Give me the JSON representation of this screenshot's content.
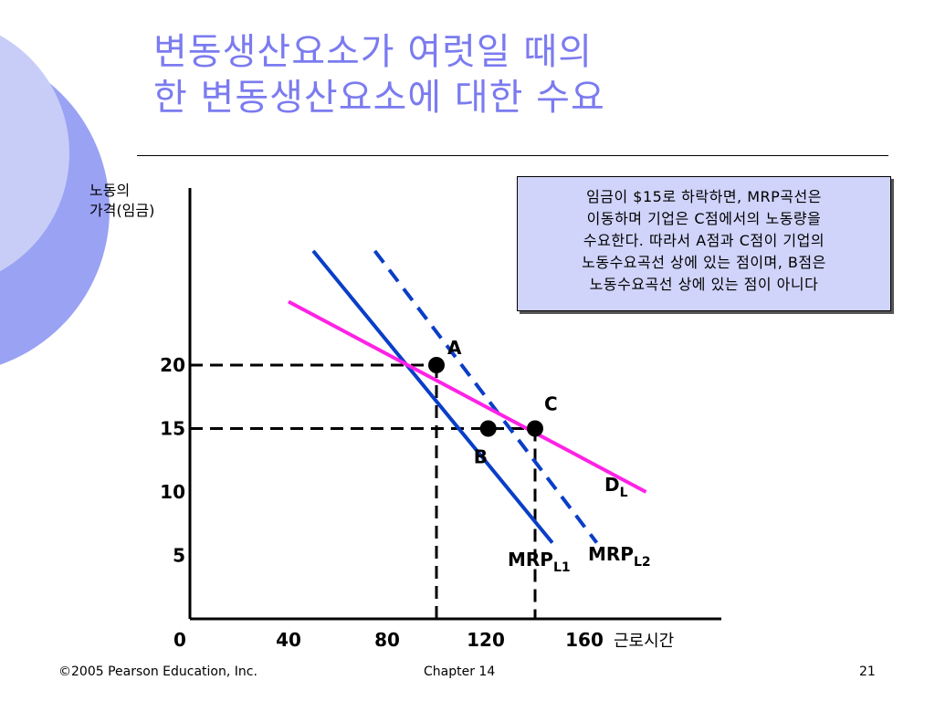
{
  "title": {
    "line1": "변동생산요소가 여럿일 때의",
    "line2": "한 변동생산요소에 대한 수요"
  },
  "note": {
    "lines": [
      "임금이 $15로 하락하면,  MRP곡선은",
      "이동하며 기업은 C점에서의 노동량을",
      "수요한다. 따라서 A점과 C점이 기업의",
      "노동수요곡선 상에 있는 점이며, B점은",
      "노동수요곡선 상에 있는 점이 아니다"
    ]
  },
  "footer": {
    "copyright": "©2005 Pearson Education, Inc.",
    "chapter": "Chapter 14",
    "page": "21"
  },
  "colors": {
    "title": "#7b7bf0",
    "mrp": "#0a3ec8",
    "demand": "#ff22e6",
    "deco_circle": "#c8cdf8",
    "deco_ring": "#9aa2f4",
    "note_bg": "#d0d4fa"
  },
  "chart_data": {
    "type": "line",
    "xlabel": "근로시간",
    "ylabel_line1": "노동의",
    "ylabel_line2": "가격(임금)",
    "x_ticks": [
      0,
      40,
      80,
      120,
      160
    ],
    "y_ticks": [
      5,
      10,
      15,
      20
    ],
    "series": [
      {
        "name": "MRPL1",
        "main": "MRP",
        "sub": "L1",
        "style": "solid",
        "points": [
          [
            50,
            29
          ],
          [
            147,
            6
          ]
        ]
      },
      {
        "name": "MRPL2",
        "main": "MRP",
        "sub": "L2",
        "style": "dashed",
        "points": [
          [
            75,
            29
          ],
          [
            165,
            6
          ]
        ]
      },
      {
        "name": "DL",
        "main": "D",
        "sub": "L",
        "style": "solid",
        "points": [
          [
            40,
            25
          ],
          [
            185,
            10
          ]
        ]
      }
    ],
    "points": [
      {
        "label": "A",
        "x": 100,
        "y": 20
      },
      {
        "label": "B",
        "x": 121,
        "y": 15
      },
      {
        "label": "C",
        "x": 140,
        "y": 15
      }
    ]
  }
}
